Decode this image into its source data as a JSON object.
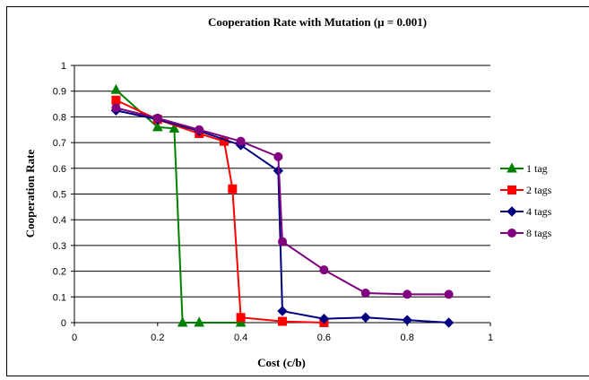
{
  "chart_data": {
    "type": "line",
    "title": "Cooperation Rate with Mutation (μ = 0.001)",
    "xlabel": "Cost (c/b)",
    "ylabel": "Cooperation Rate",
    "xlim": [
      0,
      1
    ],
    "ylim": [
      0,
      1
    ],
    "x_ticks": [
      "0",
      "0.2",
      "0.4",
      "0.6",
      "0.8",
      "1"
    ],
    "y_ticks": [
      "0",
      "0.1",
      "0.2",
      "0.3",
      "0.4",
      "0.5",
      "0.6",
      "0.7",
      "0.8",
      "0.9",
      "1"
    ],
    "grid": "horizontal",
    "legend_position": "right",
    "series": [
      {
        "name": "1 tag",
        "color": "#008000",
        "marker": "triangle",
        "points": [
          [
            0.1,
            0.905
          ],
          [
            0.2,
            0.76
          ],
          [
            0.24,
            0.755
          ],
          [
            0.26,
            0.0
          ],
          [
            0.3,
            0.0
          ],
          [
            0.4,
            0.0
          ]
        ]
      },
      {
        "name": "2 tags",
        "color": "#ff0000",
        "marker": "square",
        "points": [
          [
            0.1,
            0.865
          ],
          [
            0.2,
            0.79
          ],
          [
            0.3,
            0.735
          ],
          [
            0.36,
            0.705
          ],
          [
            0.38,
            0.52
          ],
          [
            0.4,
            0.02
          ],
          [
            0.5,
            0.005
          ],
          [
            0.6,
            0.0
          ]
        ]
      },
      {
        "name": "4 tags",
        "color": "#000080",
        "marker": "diamond",
        "points": [
          [
            0.1,
            0.825
          ],
          [
            0.2,
            0.79
          ],
          [
            0.3,
            0.745
          ],
          [
            0.4,
            0.69
          ],
          [
            0.49,
            0.59
          ],
          [
            0.5,
            0.045
          ],
          [
            0.6,
            0.015
          ],
          [
            0.7,
            0.02
          ],
          [
            0.8,
            0.01
          ],
          [
            0.9,
            0.0
          ]
        ]
      },
      {
        "name": "8 tags",
        "color": "#800080",
        "marker": "circle",
        "points": [
          [
            0.1,
            0.835
          ],
          [
            0.2,
            0.795
          ],
          [
            0.3,
            0.75
          ],
          [
            0.4,
            0.705
          ],
          [
            0.49,
            0.645
          ],
          [
            0.5,
            0.315
          ],
          [
            0.6,
            0.205
          ],
          [
            0.7,
            0.115
          ],
          [
            0.8,
            0.11
          ],
          [
            0.9,
            0.11
          ]
        ]
      }
    ]
  }
}
